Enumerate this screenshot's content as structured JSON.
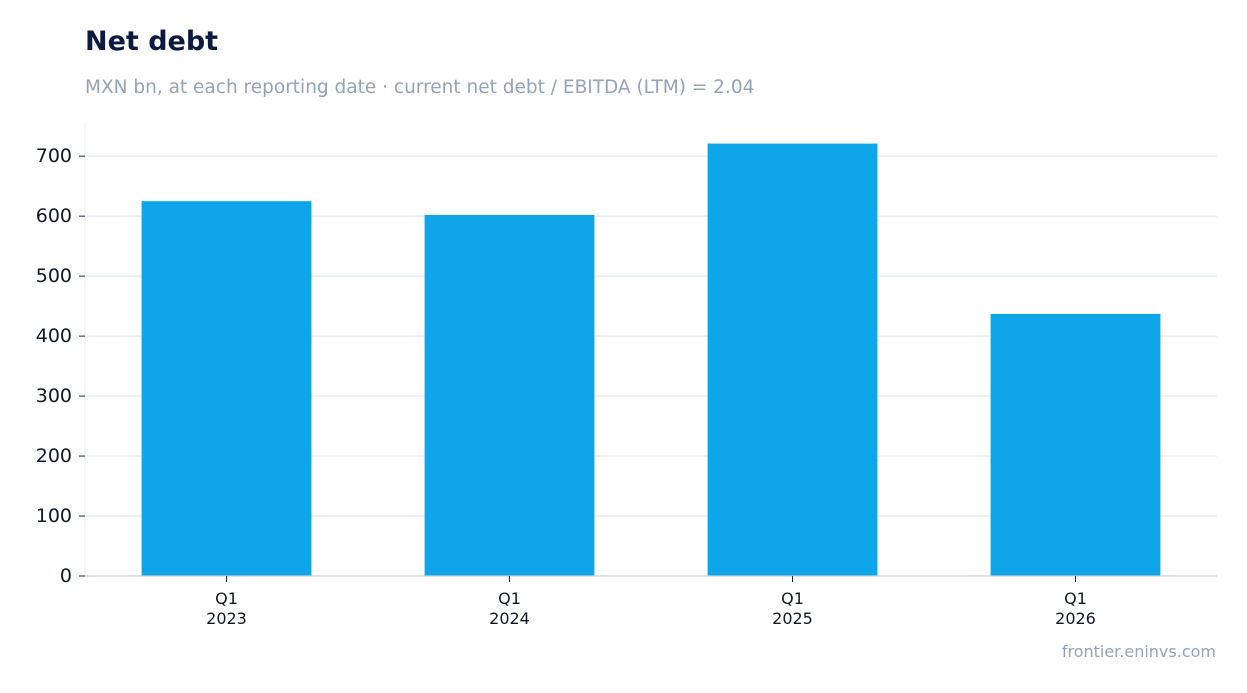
{
  "chart_data": {
    "type": "bar",
    "title": "Net debt",
    "subtitle": "MXN bn, at each reporting date · current net debt / EBITDA (LTM) = 2.04",
    "categories": [
      [
        "Q1",
        "2023"
      ],
      [
        "Q1",
        "2024"
      ],
      [
        "Q1",
        "2025"
      ],
      [
        "Q1",
        "2026"
      ]
    ],
    "values": [
      625,
      602,
      721,
      437
    ],
    "ylim": [
      0,
      757
    ],
    "yticks": [
      0,
      100,
      200,
      300,
      400,
      500,
      600,
      700
    ],
    "xlabel": "",
    "ylabel": "",
    "grid": true,
    "legend": "none",
    "bar_color": "#0ea5e9",
    "grid_color": "#e2e8f0",
    "axis_color": "#cbd5e1"
  },
  "footer": {
    "source": "frontier.eninvs.com"
  }
}
